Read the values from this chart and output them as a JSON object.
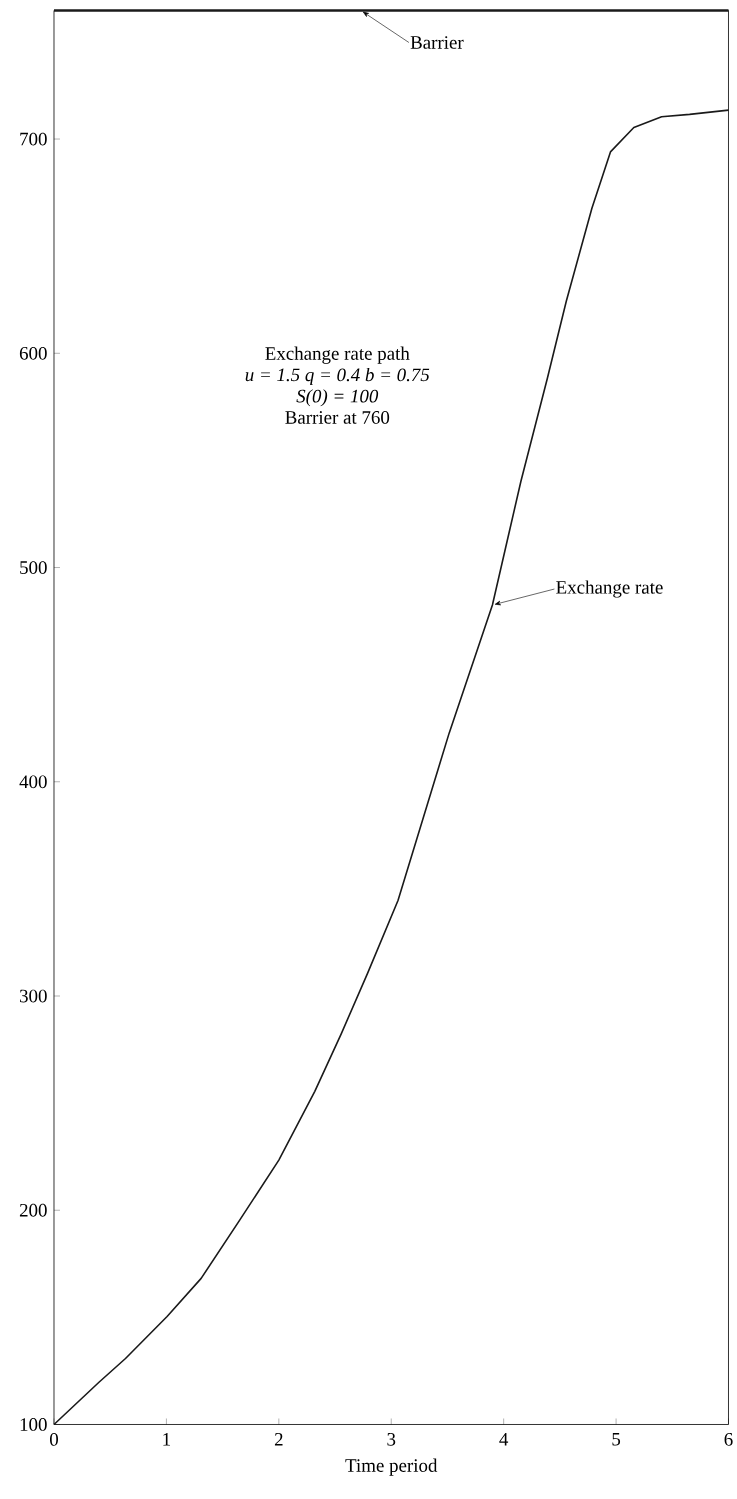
{
  "chart_data": {
    "type": "line",
    "xlabel": "Time period",
    "x": [
      0,
      0.4,
      0.636,
      1.006,
      1.309,
      1.646,
      2.0,
      2.32,
      2.554,
      2.79,
      3.06,
      3.515,
      3.9,
      4.154,
      4.39,
      4.557,
      4.785,
      4.95,
      5.158,
      5.405,
      5.654,
      6
    ],
    "series": [
      {
        "color": "#1a1a1a",
        "values": [
          100,
          119.7,
          130.8,
          150.4,
          168.2,
          194.9,
          223.4,
          255.5,
          282.2,
          310.7,
          344.6,
          422.7,
          482.5,
          540.4,
          588.6,
          624.3,
          667.7,
          694,
          705.4,
          710.4,
          711.5,
          713.5
        ]
      }
    ],
    "xlim": [
      0,
      6
    ],
    "ylim": [
      100,
      760
    ],
    "xticks": [
      0,
      1,
      2,
      3,
      4,
      5,
      6
    ],
    "yticks": [
      100,
      200,
      300,
      400,
      500,
      600,
      700
    ],
    "marker": "none",
    "line_style": "solid",
    "ref_lines": [
      {
        "axis": "y",
        "value": 760,
        "label": "Barrier",
        "color": "#1a1a1a"
      }
    ],
    "annotations": [
      {
        "text": "Exchange rate",
        "x": 3.9,
        "y": 482.5
      },
      "Exchange rate path",
      "u = 1.5    q = 0.4    b = 0.75",
      "S(0) = 100",
      "Barrier at 760"
    ]
  }
}
